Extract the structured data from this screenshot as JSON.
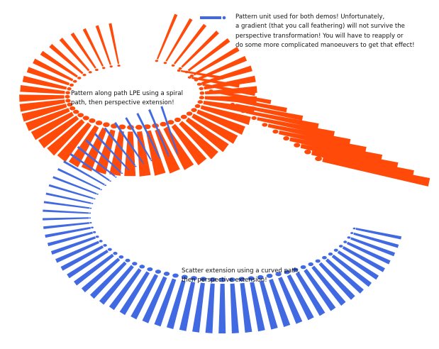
{
  "colors": {
    "orange": "#ff4a0a",
    "blue": "#4169e1"
  },
  "legend": {
    "icon": "pattern-unit-swatch",
    "lines": [
      "Pattern unit used for both demos! Unfortunately,",
      "a gradient (that you call feathering) will not survive the",
      "perspective transformation! You will have to reapply or",
      "do some more complicated manoeuvers to get that effect!"
    ]
  },
  "orange_caption": [
    "Pattern along path LPE using a spiral",
    "path, then perspective extension!"
  ],
  "blue_caption": [
    "Scatter extension using a curved path,",
    "then perspective extension!"
  ]
}
